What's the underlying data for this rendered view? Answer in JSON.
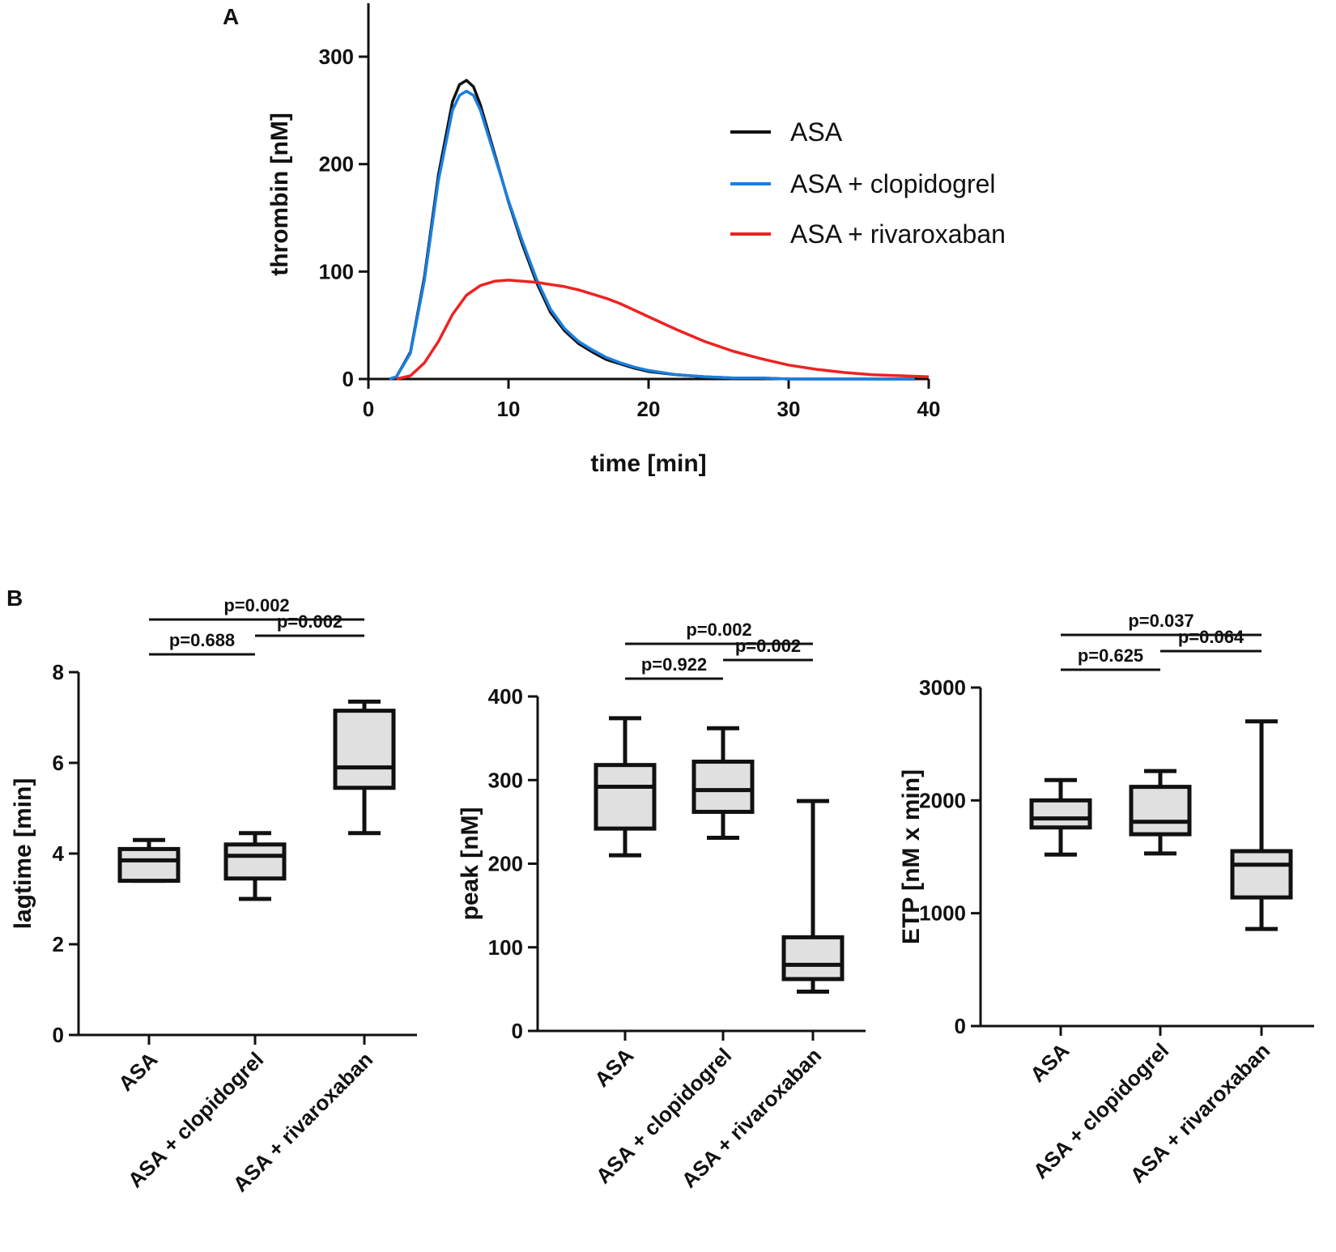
{
  "panel_a": {
    "letter": "A"
  },
  "panel_b": {
    "letter": "B"
  },
  "chart_data": [
    {
      "type": "line",
      "xlabel": "time [min]",
      "ylabel": "thrombin [nM]",
      "xlim": [
        0,
        40
      ],
      "ylim": [
        0,
        350
      ],
      "xticks": [
        0,
        10,
        20,
        30,
        40
      ],
      "yticks": [
        0,
        100,
        200,
        300
      ],
      "legend_position": "top-right",
      "series": [
        {
          "name": "ASA",
          "color": "#111111",
          "x": [
            1.5,
            2,
            3,
            4,
            5,
            6,
            6.5,
            7,
            7.5,
            8,
            9,
            10,
            11,
            12,
            13,
            14,
            15,
            16,
            17,
            18,
            19,
            20,
            22,
            24,
            26,
            28,
            30,
            32,
            35,
            39
          ],
          "y": [
            0,
            2,
            25,
            95,
            190,
            258,
            274,
            278,
            272,
            255,
            210,
            165,
            125,
            90,
            62,
            45,
            33,
            25,
            18,
            14,
            10,
            7,
            4,
            2,
            1,
            1,
            0,
            0,
            0,
            0
          ]
        },
        {
          "name": "ASA + clopidogrel",
          "color": "#1a7fe0",
          "x": [
            1.5,
            2,
            3,
            4,
            5,
            6,
            6.5,
            7,
            7.5,
            8,
            9,
            10,
            11,
            12,
            13,
            14,
            15,
            16,
            17,
            18,
            19,
            20,
            22,
            24,
            26,
            28,
            30,
            32,
            35,
            39
          ],
          "y": [
            0,
            2,
            24,
            92,
            185,
            250,
            264,
            268,
            264,
            250,
            208,
            166,
            128,
            93,
            65,
            47,
            35,
            27,
            20,
            15,
            11,
            8,
            4,
            2,
            1,
            1,
            0,
            0,
            0,
            0
          ]
        },
        {
          "name": "ASA + rivaroxaban",
          "color": "#ee2222",
          "x": [
            2,
            3,
            4,
            5,
            6,
            7,
            8,
            9,
            10,
            11,
            12,
            13,
            14,
            15,
            16,
            17,
            18,
            19,
            20,
            22,
            24,
            26,
            28,
            30,
            32,
            34,
            36,
            38,
            40
          ],
          "y": [
            0,
            3,
            15,
            35,
            60,
            78,
            87,
            91,
            92,
            91,
            90,
            88,
            86,
            83,
            79,
            75,
            70,
            64,
            58,
            46,
            35,
            26,
            19,
            13,
            9,
            6,
            4,
            3,
            2
          ]
        }
      ]
    },
    {
      "type": "box",
      "ylabel": "lagtime [min]",
      "ylim": [
        0,
        8
      ],
      "yticks": [
        0,
        2,
        4,
        6,
        8
      ],
      "categories": [
        "ASA",
        "ASA + clopidogrel",
        "ASA + rivaroxaban"
      ],
      "boxes": [
        {
          "min": 3.4,
          "q1": 3.4,
          "median": 3.85,
          "q3": 4.1,
          "max": 4.3
        },
        {
          "min": 3.0,
          "q1": 3.45,
          "median": 3.95,
          "q3": 4.2,
          "max": 4.45
        },
        {
          "min": 4.45,
          "q1": 5.45,
          "median": 5.9,
          "q3": 7.15,
          "max": 7.35
        }
      ],
      "comparisons": [
        {
          "from": 0,
          "to": 2,
          "label": "p=0.002",
          "level": 2
        },
        {
          "from": 1,
          "to": 2,
          "label": "p=0.002",
          "level": 1
        },
        {
          "from": 0,
          "to": 1,
          "label": "p=0.688",
          "level": 0
        }
      ]
    },
    {
      "type": "box",
      "ylabel": "peak [nM]",
      "ylim": [
        0,
        400
      ],
      "yticks": [
        0,
        100,
        200,
        300,
        400
      ],
      "categories": [
        "ASA",
        "ASA + clopidogrel",
        "ASA + rivaroxaban"
      ],
      "boxes": [
        {
          "min": 210,
          "q1": 242,
          "median": 292,
          "q3": 318,
          "max": 374
        },
        {
          "min": 231,
          "q1": 262,
          "median": 288,
          "q3": 322,
          "max": 362
        },
        {
          "min": 47,
          "q1": 62,
          "median": 79,
          "q3": 112,
          "max": 275
        }
      ],
      "comparisons": [
        {
          "from": 0,
          "to": 2,
          "label": "p=0.002",
          "level": 2
        },
        {
          "from": 1,
          "to": 2,
          "label": "p=0.002",
          "level": 1
        },
        {
          "from": 0,
          "to": 1,
          "label": "p=0.922",
          "level": 0
        }
      ]
    },
    {
      "type": "box",
      "ylabel": "ETP  [nM x min]",
      "ylim": [
        0,
        3000
      ],
      "yticks": [
        0,
        1000,
        2000,
        3000
      ],
      "categories": [
        "ASA",
        "ASA + clopidogrel",
        "ASA + rivaroxaban"
      ],
      "boxes": [
        {
          "min": 1520,
          "q1": 1760,
          "median": 1840,
          "q3": 2000,
          "max": 2180
        },
        {
          "min": 1530,
          "q1": 1700,
          "median": 1810,
          "q3": 2120,
          "max": 2260
        },
        {
          "min": 860,
          "q1": 1140,
          "median": 1430,
          "q3": 1550,
          "max": 2700
        }
      ],
      "comparisons": [
        {
          "from": 0,
          "to": 2,
          "label": "p=0.037",
          "level": 2
        },
        {
          "from": 1,
          "to": 2,
          "label": "p=0.064",
          "level": 1
        },
        {
          "from": 0,
          "to": 1,
          "label": "p=0.625",
          "level": 0
        }
      ]
    }
  ]
}
